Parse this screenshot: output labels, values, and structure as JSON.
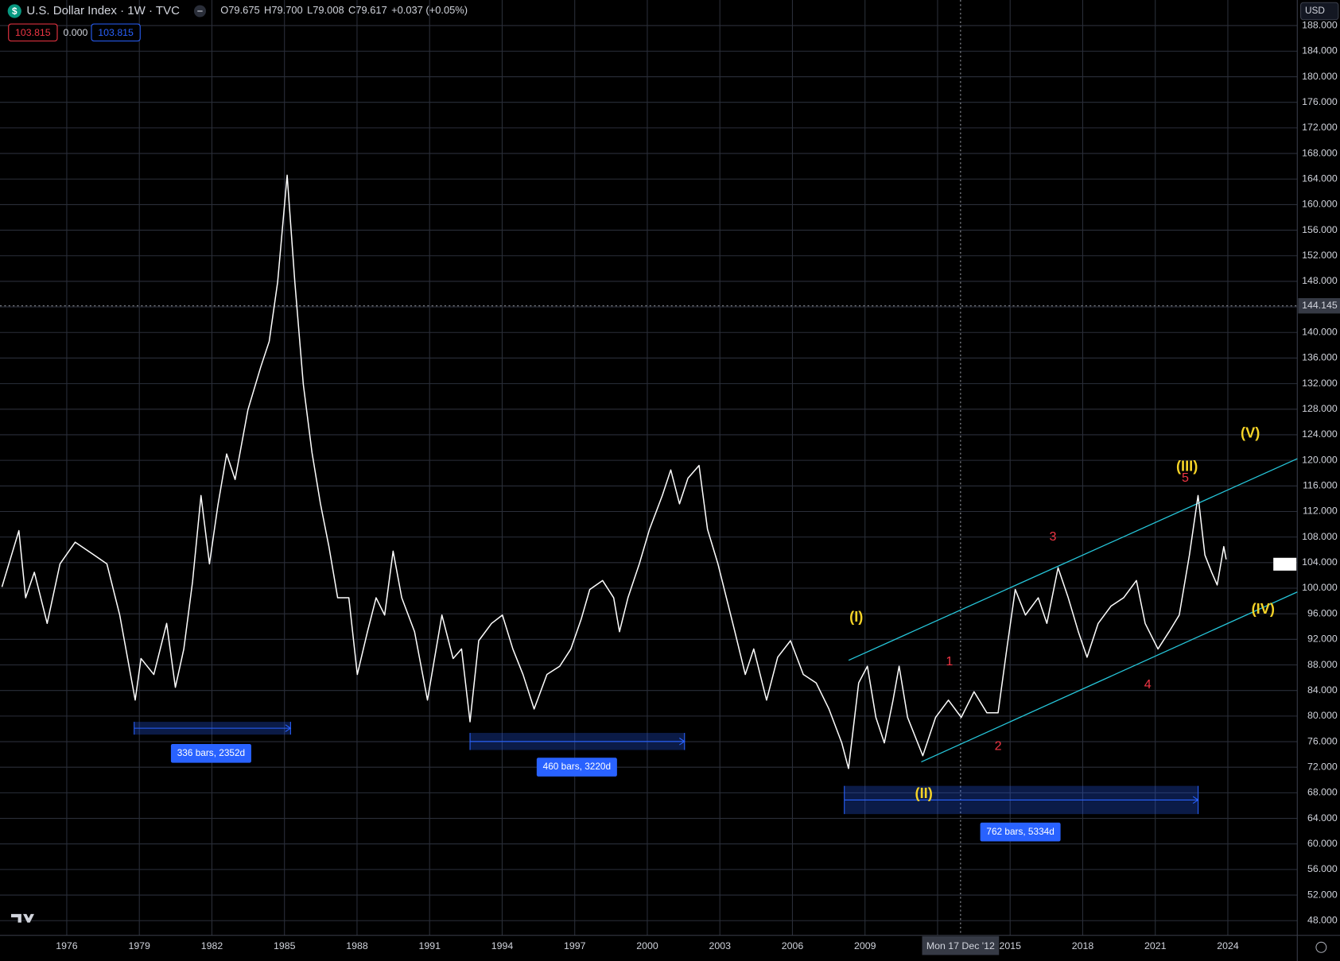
{
  "header": {
    "symbol": "U.S. Dollar Index · 1W · TVC",
    "ohlc": [
      {
        "label": "O",
        "value": "79.675"
      },
      {
        "label": "H",
        "value": "79.700"
      },
      {
        "label": "L",
        "value": "79.008"
      },
      {
        "label": "C",
        "value": "79.617"
      }
    ],
    "change": "+0.037 (+0.05%)"
  },
  "badges": [
    "103.815",
    "0.000",
    "103.815"
  ],
  "currency": "USD",
  "chart_data": {
    "type": "line",
    "color": "#ffffff",
    "grid": true,
    "x": [
      1973.32,
      1974.02,
      1974.3,
      1974.66,
      1975.19,
      1975.72,
      1976.35,
      1977.13,
      1977.66,
      1978.19,
      1978.83,
      1979.07,
      1979.6,
      1980.13,
      1980.49,
      1980.84,
      1981.2,
      1981.55,
      1981.9,
      1982.25,
      1982.61,
      1982.96,
      1983.49,
      1984.02,
      1984.37,
      1984.72,
      1985.11,
      1985.43,
      1985.78,
      1986.14,
      1986.49,
      1986.84,
      1987.2,
      1987.66,
      1988.01,
      1988.43,
      1988.79,
      1989.14,
      1989.49,
      1989.85,
      1990.38,
      1990.91,
      1991.51,
      1991.97,
      1992.32,
      1992.67,
      1993.03,
      1993.56,
      1994.01,
      1994.44,
      1994.86,
      1995.32,
      1995.85,
      1996.38,
      1996.84,
      1997.27,
      1997.62,
      1998.15,
      1998.61,
      1998.85,
      1999.2,
      1999.67,
      2000.09,
      2000.62,
      2000.97,
      2001.33,
      2001.68,
      2002.14,
      2002.49,
      2002.92,
      2003.27,
      2003.62,
      2004.05,
      2004.4,
      2004.93,
      2005.39,
      2005.92,
      2006.45,
      2006.98,
      2007.51,
      2008.04,
      2008.32,
      2008.74,
      2009.1,
      2009.45,
      2009.8,
      2010.16,
      2010.41,
      2010.76,
      2011.39,
      2011.92,
      2012.45,
      2012.98,
      2013.51,
      2014.04,
      2014.5,
      2014.86,
      2015.21,
      2015.63,
      2016.16,
      2016.52,
      2016.98,
      2017.4,
      2017.82,
      2018.18,
      2018.64,
      2019.17,
      2019.69,
      2020.22,
      2020.58,
      2021.11,
      2021.57,
      2021.99,
      2022.41,
      2022.77,
      2023.05,
      2023.33,
      2023.56,
      2023.83,
      2023.93
    ],
    "values": [
      100.2,
      109,
      98.5,
      102.5,
      94.5,
      103.8,
      107.2,
      105.2,
      103.8,
      95.8,
      82.5,
      89,
      86.5,
      94.5,
      84.5,
      90.5,
      101,
      114.5,
      103.8,
      113,
      121,
      117,
      127.9,
      134.6,
      138.6,
      147.9,
      164.6,
      147.9,
      131.9,
      121.2,
      113.2,
      106.5,
      98.5,
      98.5,
      86.5,
      93.2,
      98.5,
      95.8,
      105.8,
      98.5,
      93.2,
      82.5,
      95.8,
      89,
      90.5,
      79.1,
      91.8,
      94.5,
      95.8,
      90.5,
      86.5,
      81.1,
      86.5,
      87.8,
      90.5,
      95.2,
      99.8,
      101.2,
      98.5,
      93.2,
      98.5,
      103.8,
      109.2,
      114.5,
      118.5,
      113.2,
      117.2,
      119.2,
      109.2,
      103.8,
      98.5,
      93.2,
      86.5,
      90.5,
      82.5,
      89.2,
      91.8,
      86.5,
      85.2,
      81.1,
      75.8,
      71.8,
      85.2,
      87.8,
      79.8,
      75.8,
      82.5,
      87.8,
      79.8,
      73.8,
      79.8,
      82.5,
      79.8,
      83.8,
      80.5,
      80.5,
      90.5,
      99.8,
      95.8,
      98.5,
      94.5,
      103.2,
      98.5,
      93.2,
      89.2,
      94.5,
      97.2,
      98.5,
      101.2,
      94.5,
      90.5,
      93.2,
      95.8,
      105.2,
      114.5,
      105.2,
      102.5,
      100.5,
      106.5,
      104.5
    ],
    "xlim": [
      1973.24,
      2026.87
    ],
    "xticks": [
      1976,
      1979,
      1982,
      1985,
      1988,
      1991,
      1994,
      1997,
      2000,
      2003,
      2006,
      2009,
      2012,
      2015,
      2018,
      2021,
      2024
    ],
    "ylim": [
      45.7,
      192.0
    ],
    "yticks": [
      {
        "value": 48,
        "label": "48.000"
      },
      {
        "value": 52,
        "label": "52.000"
      },
      {
        "value": 56,
        "label": "56.000"
      },
      {
        "value": 60,
        "label": "60.000"
      },
      {
        "value": 64,
        "label": "64.000"
      },
      {
        "value": 68,
        "label": "68.000"
      },
      {
        "value": 72,
        "label": "72.000"
      },
      {
        "value": 76,
        "label": "76.000"
      },
      {
        "value": 80,
        "label": "80.000"
      },
      {
        "value": 84,
        "label": "84.000"
      },
      {
        "value": 88,
        "label": "88.000"
      },
      {
        "value": 92,
        "label": "92.000"
      },
      {
        "value": 96,
        "label": "96.000"
      },
      {
        "value": 100,
        "label": "100.000"
      },
      {
        "value": 104,
        "label": "104.000"
      },
      {
        "value": 108,
        "label": "108.000"
      },
      {
        "value": 112,
        "label": "112.000"
      },
      {
        "value": 116,
        "label": "116.000"
      },
      {
        "value": 120,
        "label": "120.000"
      },
      {
        "value": 124,
        "label": "124.000"
      },
      {
        "value": 128,
        "label": "128.000"
      },
      {
        "value": 132,
        "label": "132.000"
      },
      {
        "value": 136,
        "label": "136.000"
      },
      {
        "value": 140,
        "label": "140.000"
      },
      {
        "value": 144,
        "label": "144.000"
      },
      {
        "value": 148,
        "label": "148.000"
      },
      {
        "value": 152,
        "label": "152.000"
      },
      {
        "value": 156,
        "label": "156.000"
      },
      {
        "value": 160,
        "label": "160.000"
      },
      {
        "value": 164,
        "label": "164.000"
      },
      {
        "value": 168,
        "label": "168.000"
      },
      {
        "value": 172,
        "label": "172.000"
      },
      {
        "value": 176,
        "label": "176.000"
      },
      {
        "value": 180,
        "label": "180.000"
      },
      {
        "value": 184,
        "label": "184.000"
      },
      {
        "value": 188,
        "label": "188.000"
      }
    ],
    "crosshair": {
      "x_label": "Mon 17 Dec '12",
      "y_label": "144.145"
    },
    "annotations": [
      {
        "text": "(I)",
        "color": "#f5d327"
      },
      {
        "text": "(II)",
        "color": "#f5d327"
      },
      {
        "text": "(III)",
        "color": "#f5d327"
      },
      {
        "text": "(IV)",
        "color": "#f5d327"
      },
      {
        "text": "(V)",
        "color": "#f5d327"
      },
      {
        "text": "1",
        "color": "#f23645"
      },
      {
        "text": "2",
        "color": "#f23645"
      },
      {
        "text": "3",
        "color": "#f23645"
      },
      {
        "text": "4",
        "color": "#f23645"
      },
      {
        "text": "5",
        "color": "#f23645"
      }
    ],
    "measurements": [
      "336 bars, 2352d",
      "460 bars, 3220d",
      "762 bars, 5334d"
    ]
  }
}
